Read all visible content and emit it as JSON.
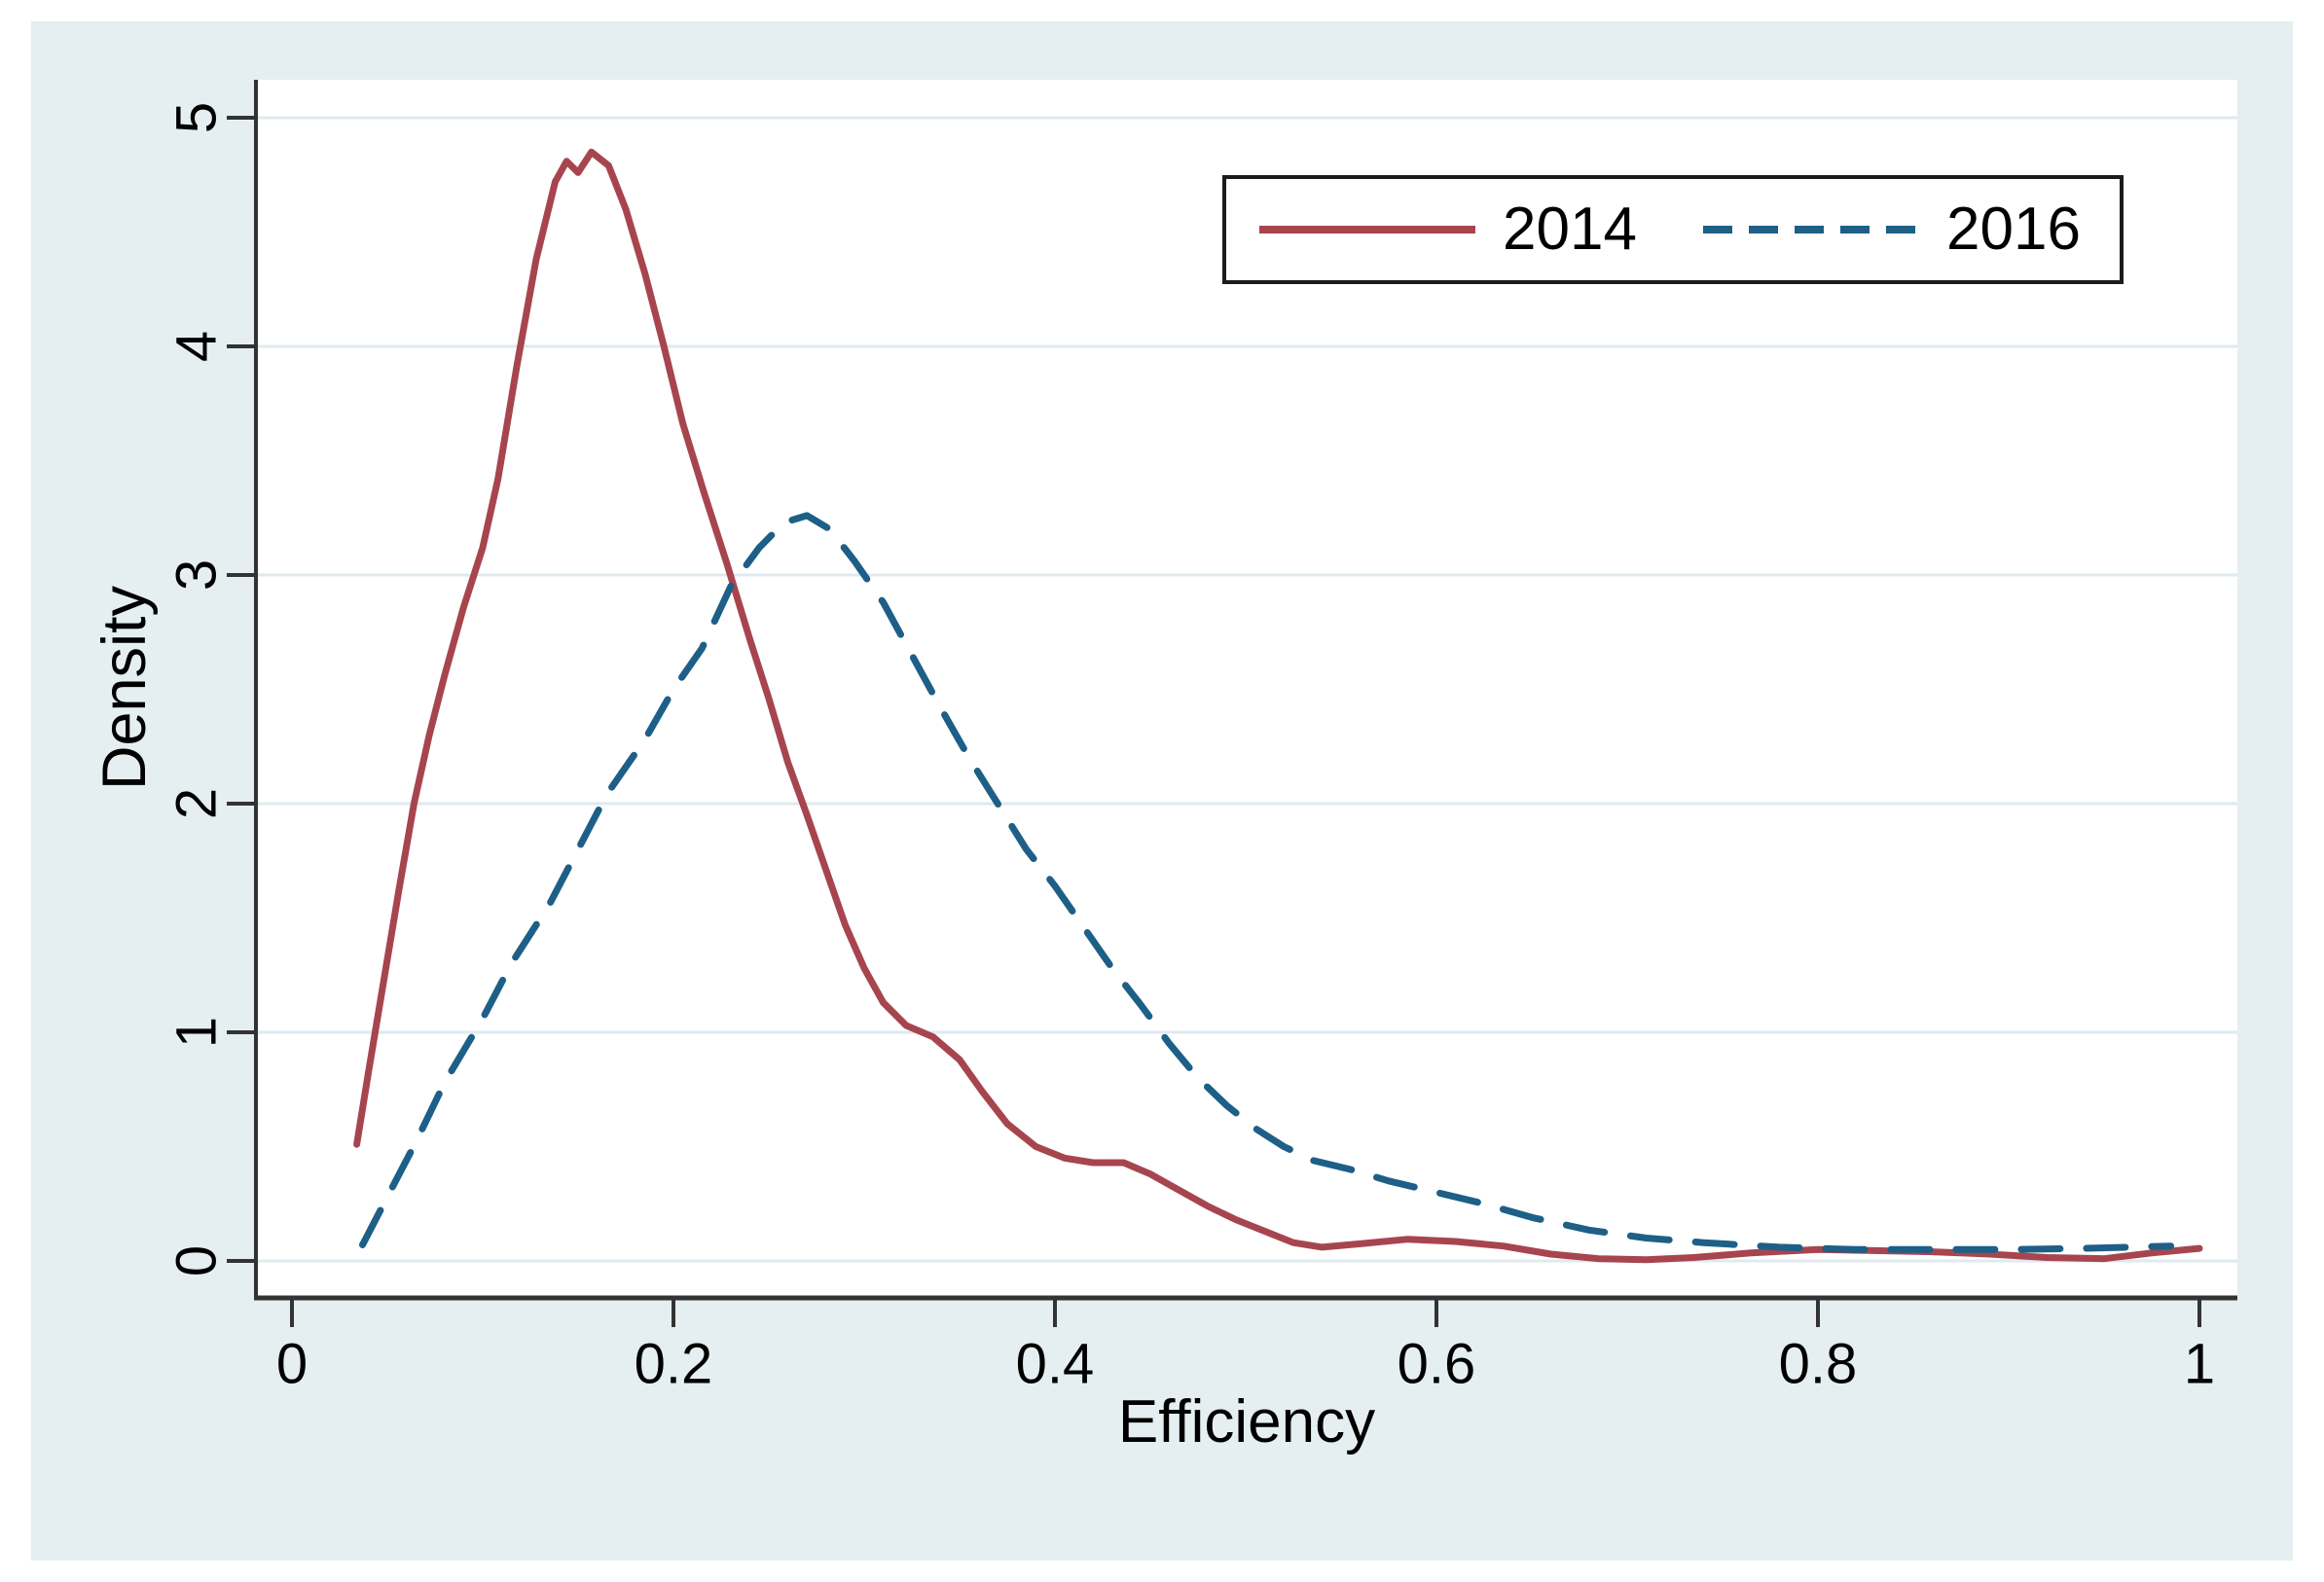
{
  "chart_data": {
    "type": "line",
    "title": "",
    "xlabel": "Efficiency",
    "ylabel": "Density",
    "x_tick_labels": [
      "0",
      "0.2",
      "0.4",
      "0.6",
      "0.8",
      "1"
    ],
    "x_tick_values": [
      0,
      0.2,
      0.4,
      0.6,
      0.8,
      1
    ],
    "y_tick_labels": [
      "0",
      "1",
      "2",
      "3",
      "4",
      "5"
    ],
    "y_tick_values": [
      0,
      1,
      2,
      3,
      4,
      5
    ],
    "xlim": [
      -0.02,
      1.02
    ],
    "ylim": [
      -0.16,
      5.2
    ],
    "grid": "horizontal gridlines at each y tick",
    "legend_position": "top-right inside plot, horizontal",
    "series": [
      {
        "name": "2014",
        "line_style": "solid",
        "color": "#a7454f",
        "points": [
          [
            0.034,
            0.51
          ],
          [
            0.04,
            0.82
          ],
          [
            0.048,
            1.22
          ],
          [
            0.056,
            1.62
          ],
          [
            0.064,
            2.0
          ],
          [
            0.072,
            2.3
          ],
          [
            0.08,
            2.56
          ],
          [
            0.09,
            2.86
          ],
          [
            0.1,
            3.12
          ],
          [
            0.108,
            3.42
          ],
          [
            0.118,
            3.92
          ],
          [
            0.128,
            4.38
          ],
          [
            0.138,
            4.72
          ],
          [
            0.144,
            4.81
          ],
          [
            0.15,
            4.76
          ],
          [
            0.157,
            4.85
          ],
          [
            0.166,
            4.79
          ],
          [
            0.175,
            4.6
          ],
          [
            0.185,
            4.32
          ],
          [
            0.195,
            4.0
          ],
          [
            0.205,
            3.66
          ],
          [
            0.216,
            3.36
          ],
          [
            0.228,
            3.05
          ],
          [
            0.24,
            2.72
          ],
          [
            0.25,
            2.46
          ],
          [
            0.26,
            2.18
          ],
          [
            0.27,
            1.95
          ],
          [
            0.28,
            1.71
          ],
          [
            0.29,
            1.47
          ],
          [
            0.3,
            1.28
          ],
          [
            0.31,
            1.13
          ],
          [
            0.322,
            1.03
          ],
          [
            0.336,
            0.98
          ],
          [
            0.35,
            0.88
          ],
          [
            0.362,
            0.74
          ],
          [
            0.375,
            0.6
          ],
          [
            0.39,
            0.5
          ],
          [
            0.405,
            0.45
          ],
          [
            0.42,
            0.43
          ],
          [
            0.436,
            0.43
          ],
          [
            0.45,
            0.38
          ],
          [
            0.465,
            0.31
          ],
          [
            0.48,
            0.24
          ],
          [
            0.495,
            0.18
          ],
          [
            0.51,
            0.13
          ],
          [
            0.525,
            0.08
          ],
          [
            0.54,
            0.06
          ],
          [
            0.56,
            0.075
          ],
          [
            0.585,
            0.095
          ],
          [
            0.61,
            0.085
          ],
          [
            0.635,
            0.065
          ],
          [
            0.66,
            0.03
          ],
          [
            0.685,
            0.01
          ],
          [
            0.71,
            0.005
          ],
          [
            0.735,
            0.015
          ],
          [
            0.765,
            0.035
          ],
          [
            0.8,
            0.05
          ],
          [
            0.83,
            0.045
          ],
          [
            0.86,
            0.04
          ],
          [
            0.89,
            0.03
          ],
          [
            0.92,
            0.015
          ],
          [
            0.95,
            0.01
          ],
          [
            0.975,
            0.035
          ],
          [
            1.0,
            0.055
          ]
        ]
      },
      {
        "name": "2016",
        "line_style": "dashed",
        "color": "#1d5f87",
        "points": [
          [
            0.037,
            0.07
          ],
          [
            0.05,
            0.28
          ],
          [
            0.065,
            0.52
          ],
          [
            0.08,
            0.78
          ],
          [
            0.1,
            1.06
          ],
          [
            0.115,
            1.3
          ],
          [
            0.135,
            1.56
          ],
          [
            0.15,
            1.8
          ],
          [
            0.165,
            2.04
          ],
          [
            0.185,
            2.28
          ],
          [
            0.2,
            2.5
          ],
          [
            0.215,
            2.68
          ],
          [
            0.23,
            2.95
          ],
          [
            0.245,
            3.12
          ],
          [
            0.258,
            3.23
          ],
          [
            0.27,
            3.26
          ],
          [
            0.282,
            3.2
          ],
          [
            0.295,
            3.06
          ],
          [
            0.31,
            2.88
          ],
          [
            0.325,
            2.65
          ],
          [
            0.34,
            2.42
          ],
          [
            0.355,
            2.2
          ],
          [
            0.37,
            2.0
          ],
          [
            0.385,
            1.8
          ],
          [
            0.4,
            1.64
          ],
          [
            0.415,
            1.46
          ],
          [
            0.43,
            1.28
          ],
          [
            0.445,
            1.12
          ],
          [
            0.46,
            0.95
          ],
          [
            0.475,
            0.8
          ],
          [
            0.49,
            0.68
          ],
          [
            0.505,
            0.58
          ],
          [
            0.52,
            0.5
          ],
          [
            0.535,
            0.44
          ],
          [
            0.555,
            0.4
          ],
          [
            0.575,
            0.35
          ],
          [
            0.6,
            0.3
          ],
          [
            0.625,
            0.25
          ],
          [
            0.65,
            0.19
          ],
          [
            0.68,
            0.135
          ],
          [
            0.71,
            0.1
          ],
          [
            0.74,
            0.08
          ],
          [
            0.78,
            0.06
          ],
          [
            0.82,
            0.05
          ],
          [
            0.86,
            0.05
          ],
          [
            0.9,
            0.05
          ],
          [
            0.94,
            0.055
          ],
          [
            0.985,
            0.065
          ]
        ]
      }
    ]
  },
  "colors": {
    "canvas_background": "#e5eff1",
    "plot_background": "#ffffff",
    "gridline": "#dfeaef",
    "axis": "#333333",
    "text": "#000000",
    "legend_border": "#1c1c1c",
    "series_2014": "#a7454f",
    "series_2016": "#1d5f87"
  }
}
